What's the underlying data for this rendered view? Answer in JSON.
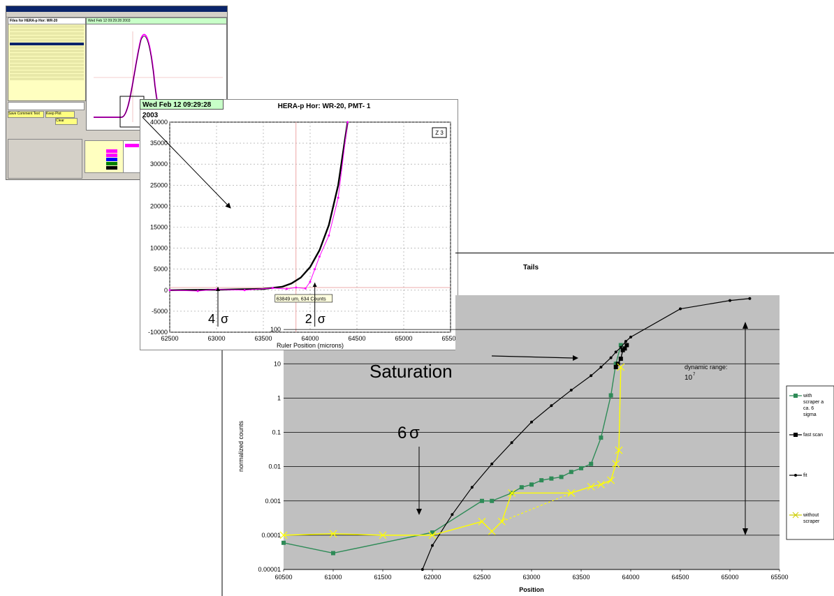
{
  "app": {
    "files_title": "Files for HERA-p  Hor: WR-20",
    "plot_tag": "Wed Feb 12 09:29:28 2003",
    "plot_title": "HERA-p  Hor: WR-20, PMT- 1",
    "buttons": [
      "Save Comment Text",
      "Keep Plot",
      "Clear"
    ]
  },
  "zoom_chart": {
    "timestamp": "Wed Feb 12 09:29:28 2003",
    "title": "HERA-p  Hor: WR-20, PMT- 1",
    "zoom_badge": "Z 3",
    "xlabel": "Ruler Position (microns)",
    "y_ticks": [
      "40000",
      "35000",
      "30000",
      "25000",
      "20000",
      "15000",
      "10000",
      "5000",
      "0",
      "-5000",
      "-10000"
    ],
    "x_ticks": [
      "62500",
      "63000",
      "63500",
      "64000",
      "64500",
      "65000",
      "65500"
    ],
    "tooltip": "63849 um,  634 Counts",
    "annot_4sigma": "4",
    "annot_2sigma": "2",
    "sigma": "σ"
  },
  "chart_data": [
    {
      "type": "line",
      "title": "HERA-p  Hor: WR-20, PMT- 1",
      "xlabel": "Ruler Position (microns)",
      "xlim": [
        62500,
        65500
      ],
      "ylim": [
        -10000,
        40000
      ],
      "grid": true,
      "series": [
        {
          "name": "",
          "color": "#000000",
          "x": [
            62500,
            63000,
            63500,
            63700,
            63800,
            63900,
            64000,
            64100,
            64200,
            64300,
            64400
          ],
          "y": [
            0,
            100,
            300,
            800,
            1600,
            3000,
            5500,
            9500,
            15500,
            25000,
            40000
          ]
        },
        {
          "name": "",
          "color": "#ff00ff",
          "x": [
            62500,
            62800,
            63000,
            63300,
            63600,
            63750,
            63850,
            63950,
            64000,
            64050,
            64100,
            64200,
            64300,
            64400
          ],
          "y": [
            0,
            -200,
            200,
            0,
            500,
            300,
            634,
            400,
            2000,
            5000,
            8000,
            13000,
            22000,
            40000
          ]
        }
      ]
    },
    {
      "type": "line",
      "title": "Tails",
      "xlabel": "Position",
      "ylabel": "normalized counts",
      "ylog": true,
      "xlim": [
        60500,
        65500
      ],
      "ylim": [
        1e-05,
        1000
      ],
      "y_ticks": [
        "100",
        "10",
        "1",
        "0.1",
        "0.01",
        "0.001",
        "0.0001",
        "0.00001"
      ],
      "x_ticks": [
        "60500",
        "61000",
        "61500",
        "62000",
        "62500",
        "63000",
        "63500",
        "64000",
        "64500",
        "65000",
        "65500"
      ],
      "series": [
        {
          "name": "with scraper at ca. 6 sigma",
          "color": "#2e8b57",
          "x": [
            60500,
            61000,
            62000,
            62500,
            62600,
            62800,
            62900,
            63000,
            63100,
            63200,
            63300,
            63400,
            63500,
            63600,
            63700,
            63800,
            63850,
            63900
          ],
          "y": [
            6e-05,
            3e-05,
            0.00012,
            0.001,
            0.001,
            0.0017,
            0.0025,
            0.003,
            0.004,
            0.0045,
            0.005,
            0.007,
            0.009,
            0.012,
            0.07,
            1.2,
            10,
            35
          ]
        },
        {
          "name": "fast scan",
          "color": "#000000",
          "x": [
            63850,
            63870,
            63900,
            63920,
            63940,
            63960
          ],
          "y": [
            8,
            10,
            14,
            25,
            28,
            35
          ]
        },
        {
          "name": "fit",
          "color": "#000000",
          "x": [
            61900,
            62000,
            62200,
            62400,
            62600,
            62800,
            63000,
            63200,
            63400,
            63600,
            63700,
            63800,
            63850,
            63900,
            63950,
            64000,
            64500,
            65000,
            65200
          ],
          "y": [
            1e-05,
            5e-05,
            0.0004,
            0.0025,
            0.012,
            0.05,
            0.2,
            0.6,
            1.7,
            4.5,
            8,
            15,
            22,
            30,
            45,
            60,
            400,
            700,
            800
          ]
        },
        {
          "name": "without scraper",
          "color": "#ffff00",
          "x": [
            60500,
            61000,
            61500,
            62000,
            62500,
            62600,
            62700,
            62800,
            63400,
            63600,
            63700,
            63800,
            63850,
            63880,
            63900
          ],
          "y": [
            0.0001,
            0.00011,
            0.0001,
            0.0001,
            0.00025,
            0.00013,
            0.00025,
            0.0017,
            0.0017,
            0.0026,
            0.003,
            0.004,
            0.012,
            0.03,
            8
          ]
        }
      ]
    }
  ],
  "tails": {
    "title": "Tails",
    "ylabel": "normalized counts",
    "xlabel": "Position",
    "saturation": "Saturation",
    "six_sigma": "6",
    "sigma": "σ",
    "dynamic_range_label": "dynamic range:",
    "dynamic_range_value": "10",
    "dynamic_range_exp": "7",
    "legend": [
      "with scraper at ca. 6 sigma",
      "fast scan",
      "fit",
      "without scraper"
    ]
  }
}
